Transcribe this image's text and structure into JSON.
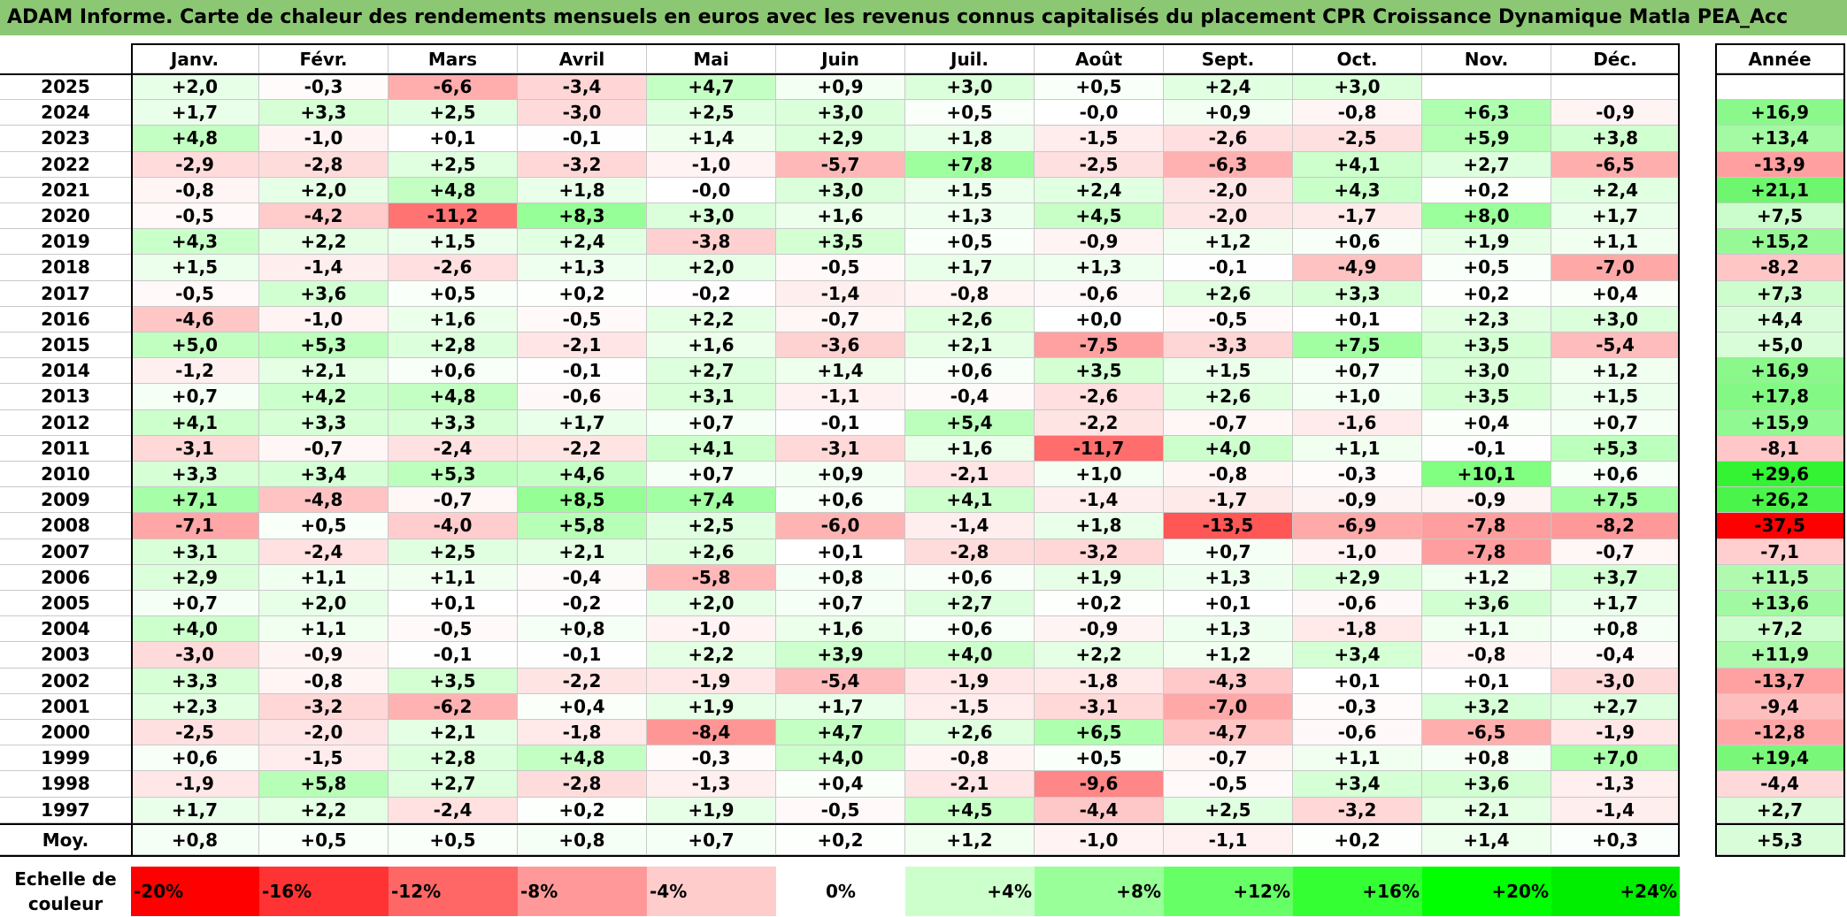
{
  "title": "ADAM Informe. Carte de chaleur des rendements mensuels en euros avec les revenus connus capitalisés du placement CPR Croissance Dynamique Matla PEA_Acc",
  "chart_data": {
    "type": "heatmap",
    "title": "ADAM Informe. Carte de chaleur des rendements mensuels en euros avec les revenus connus capitalisés du placement CPR Croissance Dynamique Matla PEA_Acc",
    "months": [
      "Janv.",
      "Févr.",
      "Mars",
      "Avril",
      "Mai",
      "Juin",
      "Juil.",
      "Août",
      "Sept.",
      "Oct.",
      "Nov.",
      "Déc."
    ],
    "year_header": "Année",
    "rows": [
      {
        "year": "2025",
        "values": [
          "+2,0",
          "-0,3",
          "-6,6",
          "-3,4",
          "+4,7",
          "+0,9",
          "+3,0",
          "+0,5",
          "+2,4",
          "+3,0",
          "",
          ""
        ],
        "annual": ""
      },
      {
        "year": "2024",
        "values": [
          "+1,7",
          "+3,3",
          "+2,5",
          "-3,0",
          "+2,5",
          "+3,0",
          "+0,5",
          "-0,0",
          "+0,9",
          "-0,8",
          "+6,3",
          "-0,9"
        ],
        "annual": "+16,9"
      },
      {
        "year": "2023",
        "values": [
          "+4,8",
          "-1,0",
          "+0,1",
          "-0,1",
          "+1,4",
          "+2,9",
          "+1,8",
          "-1,5",
          "-2,6",
          "-2,5",
          "+5,9",
          "+3,8"
        ],
        "annual": "+13,4"
      },
      {
        "year": "2022",
        "values": [
          "-2,9",
          "-2,8",
          "+2,5",
          "-3,2",
          "-1,0",
          "-5,7",
          "+7,8",
          "-2,5",
          "-6,3",
          "+4,1",
          "+2,7",
          "-6,5"
        ],
        "annual": "-13,9"
      },
      {
        "year": "2021",
        "values": [
          "-0,8",
          "+2,0",
          "+4,8",
          "+1,8",
          "-0,0",
          "+3,0",
          "+1,5",
          "+2,4",
          "-2,0",
          "+4,3",
          "+0,2",
          "+2,4"
        ],
        "annual": "+21,1"
      },
      {
        "year": "2020",
        "values": [
          "-0,5",
          "-4,2",
          "-11,2",
          "+8,3",
          "+3,0",
          "+1,6",
          "+1,3",
          "+4,5",
          "-2,0",
          "-1,7",
          "+8,0",
          "+1,7"
        ],
        "annual": "+7,5"
      },
      {
        "year": "2019",
        "values": [
          "+4,3",
          "+2,2",
          "+1,5",
          "+2,4",
          "-3,8",
          "+3,5",
          "+0,5",
          "-0,9",
          "+1,2",
          "+0,6",
          "+1,9",
          "+1,1"
        ],
        "annual": "+15,2"
      },
      {
        "year": "2018",
        "values": [
          "+1,5",
          "-1,4",
          "-2,6",
          "+1,3",
          "+2,0",
          "-0,5",
          "+1,7",
          "+1,3",
          "-0,1",
          "-4,9",
          "+0,5",
          "-7,0"
        ],
        "annual": "-8,2"
      },
      {
        "year": "2017",
        "values": [
          "-0,5",
          "+3,6",
          "+0,5",
          "+0,2",
          "-0,2",
          "-1,4",
          "-0,8",
          "-0,6",
          "+2,6",
          "+3,3",
          "+0,2",
          "+0,4"
        ],
        "annual": "+7,3"
      },
      {
        "year": "2016",
        "values": [
          "-4,6",
          "-1,0",
          "+1,6",
          "-0,5",
          "+2,2",
          "-0,7",
          "+2,6",
          "+0,0",
          "-0,5",
          "+0,1",
          "+2,3",
          "+3,0"
        ],
        "annual": "+4,4"
      },
      {
        "year": "2015",
        "values": [
          "+5,0",
          "+5,3",
          "+2,8",
          "-2,1",
          "+1,6",
          "-3,6",
          "+2,1",
          "-7,5",
          "-3,3",
          "+7,5",
          "+3,5",
          "-5,4"
        ],
        "annual": "+5,0"
      },
      {
        "year": "2014",
        "values": [
          "-1,2",
          "+2,1",
          "+0,6",
          "-0,1",
          "+2,7",
          "+1,4",
          "+0,6",
          "+3,5",
          "+1,5",
          "+0,7",
          "+3,0",
          "+1,2"
        ],
        "annual": "+16,9"
      },
      {
        "year": "2013",
        "values": [
          "+0,7",
          "+4,2",
          "+4,8",
          "-0,6",
          "+3,1",
          "-1,1",
          "-0,4",
          "-2,6",
          "+2,6",
          "+1,0",
          "+3,5",
          "+1,5"
        ],
        "annual": "+17,8"
      },
      {
        "year": "2012",
        "values": [
          "+4,1",
          "+3,3",
          "+3,3",
          "+1,7",
          "+0,7",
          "-0,1",
          "+5,4",
          "-2,2",
          "-0,7",
          "-1,6",
          "+0,4",
          "+0,7"
        ],
        "annual": "+15,9"
      },
      {
        "year": "2011",
        "values": [
          "-3,1",
          "-0,7",
          "-2,4",
          "-2,2",
          "+4,1",
          "-3,1",
          "+1,6",
          "-11,7",
          "+4,0",
          "+1,1",
          "-0,1",
          "+5,3"
        ],
        "annual": "-8,1"
      },
      {
        "year": "2010",
        "values": [
          "+3,3",
          "+3,4",
          "+5,3",
          "+4,6",
          "+0,7",
          "+0,9",
          "-2,1",
          "+1,0",
          "-0,8",
          "-0,3",
          "+10,1",
          "+0,6"
        ],
        "annual": "+29,6"
      },
      {
        "year": "2009",
        "values": [
          "+7,1",
          "-4,8",
          "-0,7",
          "+8,5",
          "+7,4",
          "+0,6",
          "+4,1",
          "-1,4",
          "-1,7",
          "-0,9",
          "-0,9",
          "+7,5"
        ],
        "annual": "+26,2"
      },
      {
        "year": "2008",
        "values": [
          "-7,1",
          "+0,5",
          "-4,0",
          "+5,8",
          "+2,5",
          "-6,0",
          "-1,4",
          "+1,8",
          "-13,5",
          "-6,9",
          "-7,8",
          "-8,2"
        ],
        "annual": "-37,5"
      },
      {
        "year": "2007",
        "values": [
          "+3,1",
          "-2,4",
          "+2,5",
          "+2,1",
          "+2,6",
          "+0,1",
          "-2,8",
          "-3,2",
          "+0,7",
          "-1,0",
          "-7,8",
          "-0,7"
        ],
        "annual": "-7,1"
      },
      {
        "year": "2006",
        "values": [
          "+2,9",
          "+1,1",
          "+1,1",
          "-0,4",
          "-5,8",
          "+0,8",
          "+0,6",
          "+1,9",
          "+1,3",
          "+2,9",
          "+1,2",
          "+3,7"
        ],
        "annual": "+11,5"
      },
      {
        "year": "2005",
        "values": [
          "+0,7",
          "+2,0",
          "+0,1",
          "-0,2",
          "+2,0",
          "+0,7",
          "+2,7",
          "+0,2",
          "+0,1",
          "-0,6",
          "+3,6",
          "+1,7"
        ],
        "annual": "+13,6"
      },
      {
        "year": "2004",
        "values": [
          "+4,0",
          "+1,1",
          "-0,5",
          "+0,8",
          "-1,0",
          "+1,6",
          "+0,6",
          "-0,9",
          "+1,3",
          "-1,8",
          "+1,1",
          "+0,8"
        ],
        "annual": "+7,2"
      },
      {
        "year": "2003",
        "values": [
          "-3,0",
          "-0,9",
          "-0,1",
          "-0,1",
          "+2,2",
          "+3,9",
          "+4,0",
          "+2,2",
          "+1,2",
          "+3,4",
          "-0,8",
          "-0,4"
        ],
        "annual": "+11,9"
      },
      {
        "year": "2002",
        "values": [
          "+3,3",
          "-0,8",
          "+3,5",
          "-2,2",
          "-1,9",
          "-5,4",
          "-1,9",
          "-1,8",
          "-4,3",
          "+0,1",
          "+0,1",
          "-3,0"
        ],
        "annual": "-13,7"
      },
      {
        "year": "2001",
        "values": [
          "+2,3",
          "-3,2",
          "-6,2",
          "+0,4",
          "+1,9",
          "+1,7",
          "-1,5",
          "-3,1",
          "-7,0",
          "-0,3",
          "+3,2",
          "+2,7"
        ],
        "annual": "-9,4"
      },
      {
        "year": "2000",
        "values": [
          "-2,5",
          "-2,0",
          "+2,1",
          "-1,8",
          "-8,4",
          "+4,7",
          "+2,6",
          "+6,5",
          "-4,7",
          "-0,6",
          "-6,5",
          "-1,9"
        ],
        "annual": "-12,8"
      },
      {
        "year": "1999",
        "values": [
          "+0,6",
          "-1,5",
          "+2,8",
          "+4,8",
          "-0,3",
          "+4,0",
          "-0,8",
          "+0,5",
          "-0,7",
          "+1,1",
          "+0,8",
          "+7,0"
        ],
        "annual": "+19,4"
      },
      {
        "year": "1998",
        "values": [
          "-1,9",
          "+5,8",
          "+2,7",
          "-2,8",
          "-1,3",
          "+0,4",
          "-2,1",
          "-9,6",
          "-0,5",
          "+3,4",
          "+3,6",
          "-1,3"
        ],
        "annual": "-4,4"
      },
      {
        "year": "1997",
        "values": [
          "+1,7",
          "+2,2",
          "-2,4",
          "+0,2",
          "+1,9",
          "-0,5",
          "+4,5",
          "-4,4",
          "+2,5",
          "-3,2",
          "+2,1",
          "-1,4"
        ],
        "annual": "+2,7"
      }
    ],
    "average": {
      "label": "Moy.",
      "values": [
        "+0,8",
        "+0,5",
        "+0,5",
        "+0,8",
        "+0,7",
        "+0,2",
        "+1,2",
        "-1,0",
        "-1,1",
        "+0,2",
        "+1,4",
        "+0,3"
      ],
      "annual": "+5,3"
    },
    "color_scale": {
      "label": "Echelle de couleur",
      "stops": [
        {
          "label": "-20%",
          "value": -20,
          "color": "#ff0000"
        },
        {
          "label": "-16%",
          "value": -16,
          "color": "#ff3333"
        },
        {
          "label": "-12%",
          "value": -12,
          "color": "#ff6666"
        },
        {
          "label": "-8%",
          "value": -8,
          "color": "#ff9999"
        },
        {
          "label": "-4%",
          "value": -4,
          "color": "#ffcccc"
        },
        {
          "label": "0%",
          "value": 0,
          "color": "#ffffff"
        },
        {
          "label": "+4%",
          "value": 4,
          "color": "#ccffcc"
        },
        {
          "label": "+8%",
          "value": 8,
          "color": "#99ff99"
        },
        {
          "label": "+12%",
          "value": 12,
          "color": "#66ff66"
        },
        {
          "label": "+16%",
          "value": 16,
          "color": "#33ff33"
        },
        {
          "label": "+20%",
          "value": 20,
          "color": "#00ff00"
        },
        {
          "label": "+24%",
          "value": 24,
          "color": "#00ee00"
        }
      ]
    }
  }
}
